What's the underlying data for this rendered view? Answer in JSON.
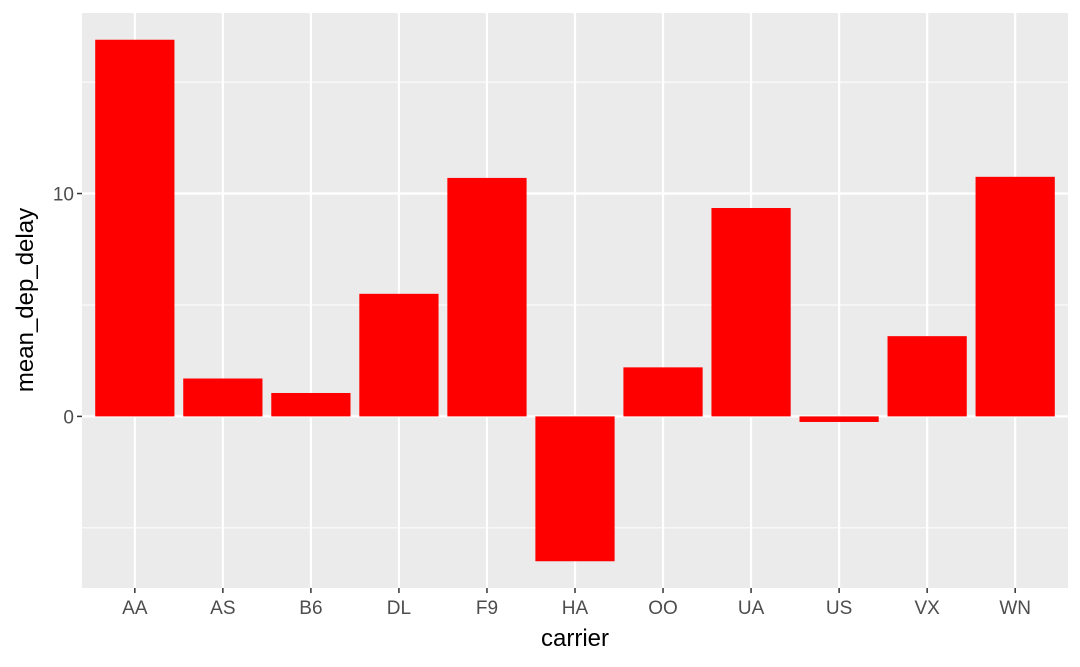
{
  "chart_data": {
    "type": "bar",
    "categories": [
      "AA",
      "AS",
      "B6",
      "DL",
      "F9",
      "HA",
      "OO",
      "UA",
      "US",
      "VX",
      "WN"
    ],
    "values": [
      16.9,
      1.7,
      1.05,
      5.5,
      10.7,
      -6.5,
      2.2,
      9.35,
      -0.25,
      3.6,
      10.75
    ],
    "xlabel": "carrier",
    "ylabel": "mean_dep_delay",
    "ylim": [
      -7.7,
      18.1
    ],
    "yticks": [
      0,
      10
    ],
    "yticks_minor": [
      -5,
      5,
      15
    ],
    "grid": true,
    "legend": "none",
    "colors": {
      "bar": "#ff0000",
      "panel_background": "#ebebeb",
      "grid": "#ffffff",
      "tick_label": "#4d4d4d",
      "tick_mark": "#333333",
      "axis_title": "#000000"
    }
  }
}
